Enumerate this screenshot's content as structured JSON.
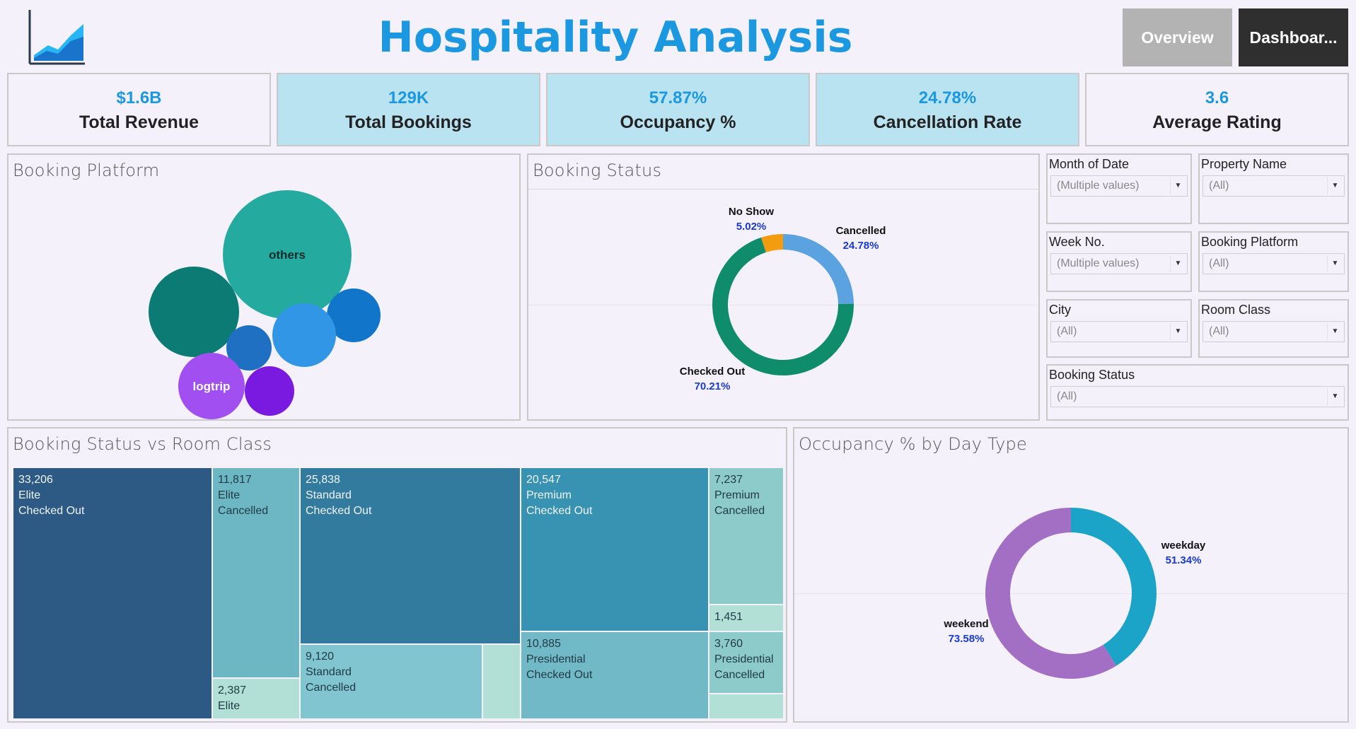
{
  "header": {
    "title": "Hospitality Analysis",
    "nav": [
      {
        "label": "Overview",
        "color": "#b3b3b3"
      },
      {
        "label": "Dashboar...",
        "color": "#2f2f2f"
      }
    ]
  },
  "kpis": [
    {
      "value": "$1.6B",
      "label": "Total Revenue",
      "bg": "#f5f1fb"
    },
    {
      "value": "129K",
      "label": "Total Bookings",
      "bg": "#b9e3f1"
    },
    {
      "value": "57.87%",
      "label": "Occupancy %",
      "bg": "#b9e3f1"
    },
    {
      "value": "24.78%",
      "label": "Cancellation Rate",
      "bg": "#b9e3f1"
    },
    {
      "value": "3.6",
      "label": "Average Rating",
      "bg": "#f5f1fb"
    }
  ],
  "booking_platform": {
    "title": "Booking Platform",
    "bubbles": [
      {
        "label": "others",
        "color": "#25aaa0"
      },
      {
        "label": "",
        "color": "#0b7b74"
      },
      {
        "label": "",
        "color": "#1175c9"
      },
      {
        "label": "",
        "color": "#1f70c2"
      },
      {
        "label": "",
        "color": "#3296e6"
      },
      {
        "label": "logtrip",
        "color": "#a14ff0"
      },
      {
        "label": "",
        "color": "#7a1ae0"
      }
    ]
  },
  "booking_status": {
    "title": "Booking Status",
    "segments": [
      {
        "name": "Checked Out",
        "pct": "70.21%",
        "value": 70.21,
        "color": "#0e8c6b"
      },
      {
        "name": "No Show",
        "pct": "5.02%",
        "value": 5.02,
        "color": "#f39c12"
      },
      {
        "name": "Cancelled",
        "pct": "24.78%",
        "value": 24.78,
        "color": "#5aa2e0"
      }
    ]
  },
  "filters": [
    {
      "label": "Month of Date",
      "value": "(Multiple values)"
    },
    {
      "label": "Property Name",
      "value": "(All)"
    },
    {
      "label": "Week No.",
      "value": "(Multiple values)"
    },
    {
      "label": "Booking Platform",
      "value": "(All)"
    },
    {
      "label": "City",
      "value": "(All)"
    },
    {
      "label": "Room Class",
      "value": "(All)"
    },
    {
      "label": "Booking Status",
      "value": "(All)"
    }
  ],
  "treemap": {
    "title": "Booking Status vs Room Class",
    "tiles": [
      {
        "value": "33,206",
        "class": "Elite",
        "status": "Checked Out",
        "color": "#2c5a85",
        "dark": true
      },
      {
        "value": "11,817",
        "class": "Elite",
        "status": "Cancelled",
        "color": "#6db7c5",
        "dark": false
      },
      {
        "value": "2,387",
        "class": "Elite",
        "status": "",
        "color": "#b2dfd6",
        "dark": false
      },
      {
        "value": "25,838",
        "class": "Standard",
        "status": "Checked Out",
        "color": "#337a9f",
        "dark": true
      },
      {
        "value": "9,120",
        "class": "Standard",
        "status": "Cancelled",
        "color": "#80c5cf",
        "dark": false
      },
      {
        "value": "",
        "class": "",
        "status": "",
        "color": "#b2dfd6",
        "dark": false
      },
      {
        "value": "20,547",
        "class": "Premium",
        "status": "Checked Out",
        "color": "#3892b2",
        "dark": true
      },
      {
        "value": "7,237",
        "class": "Premium",
        "status": "Cancelled",
        "color": "#8dcaca",
        "dark": false
      },
      {
        "value": "1,451",
        "class": "",
        "status": "",
        "color": "#b2dfd6",
        "dark": false
      },
      {
        "value": "10,885",
        "class": "Presidential",
        "status": "Checked Out",
        "color": "#72b9c7",
        "dark": false
      },
      {
        "value": "3,760",
        "class": "Presidential",
        "status": "Cancelled",
        "color": "#8dcaca",
        "dark": false
      },
      {
        "value": "",
        "class": "",
        "status": "",
        "color": "#b2dfd6",
        "dark": false
      }
    ]
  },
  "occupancy_day_type": {
    "title": "Occupancy % by Day Type",
    "segments": [
      {
        "name": "weekday",
        "pct": "51.34%",
        "value": 41.1,
        "color": "#1ba3c8"
      },
      {
        "name": "weekend",
        "pct": "73.58%",
        "value": 58.9,
        "color": "#a36fc4"
      }
    ]
  }
}
